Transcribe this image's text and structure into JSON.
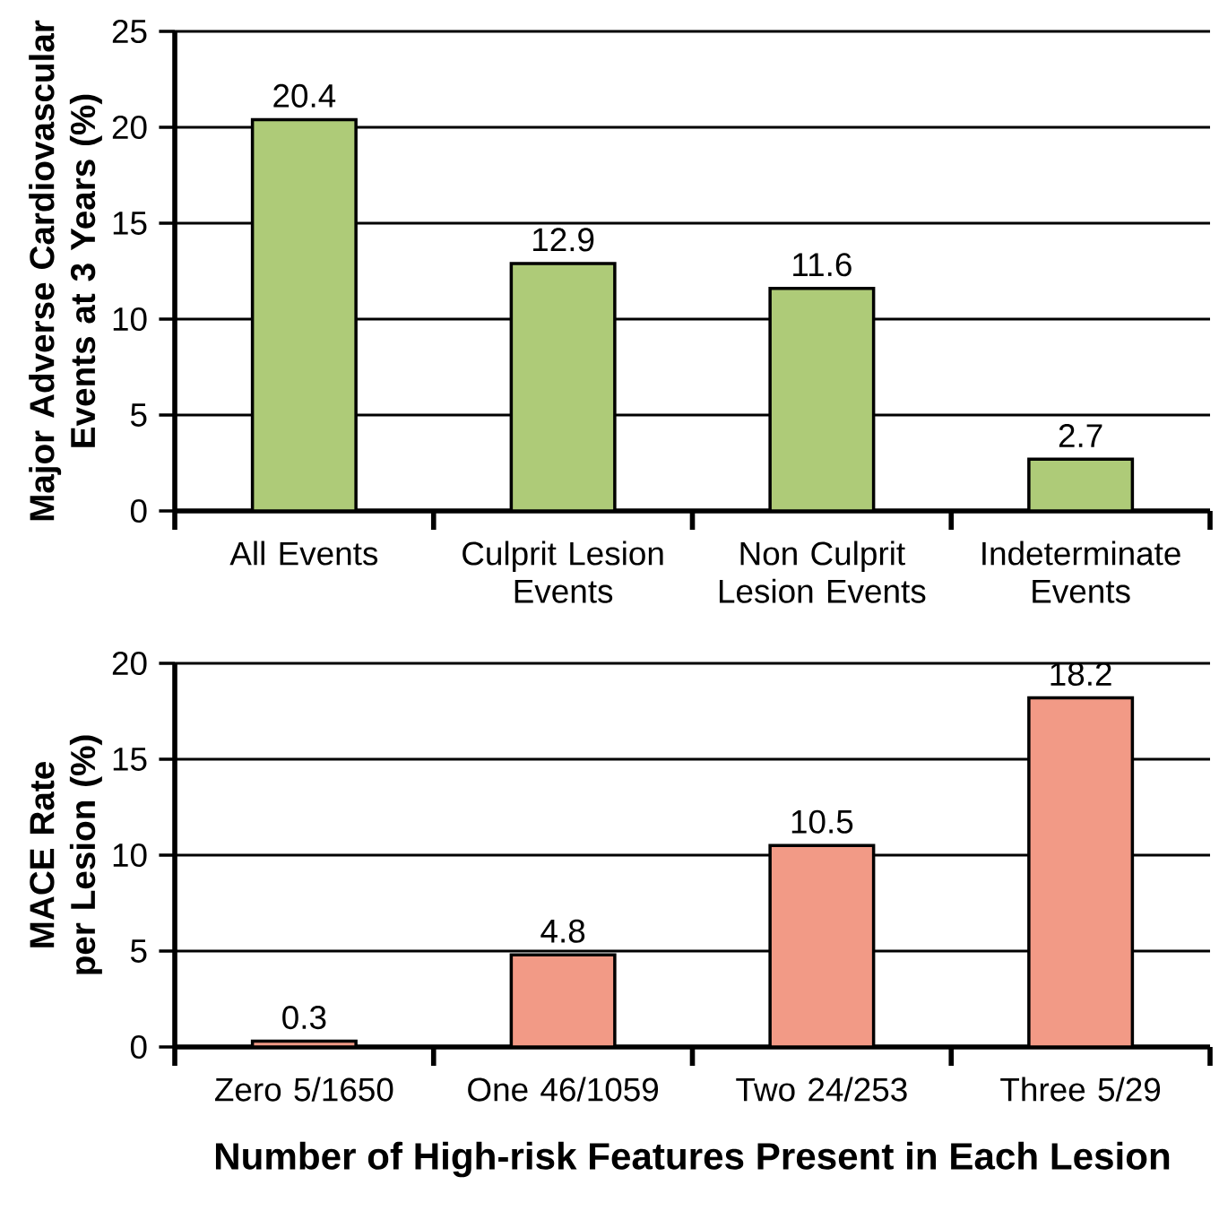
{
  "chart_data": [
    {
      "type": "bar",
      "ylabel": "Major Adverse Cardiovascular Events at 3 Years (%)",
      "categories": [
        "All Events",
        "Culprit Lesion Events",
        "Non Culprit Lesion Events",
        "Indeterminate Events"
      ],
      "values": [
        20.4,
        12.9,
        11.6,
        2.7
      ],
      "color": "#aecb78",
      "ylim": [
        0,
        25
      ],
      "yticks": [
        0,
        5,
        10,
        15,
        20,
        25
      ],
      "grid": "y",
      "data_labels": true
    },
    {
      "type": "bar",
      "ylabel": "MACE Rate per Lesion (%)",
      "xlabel": "Number of High-risk Features Present in Each Lesion",
      "categories": [
        "Zero 5/1650",
        "One 46/1059",
        "Two 24/253",
        "Three 5/29"
      ],
      "values": [
        0.3,
        4.8,
        10.5,
        18.2
      ],
      "color": "#f29a86",
      "ylim": [
        0,
        20
      ],
      "yticks": [
        0,
        5,
        10,
        15,
        20
      ],
      "grid": "y",
      "data_labels": true
    }
  ]
}
